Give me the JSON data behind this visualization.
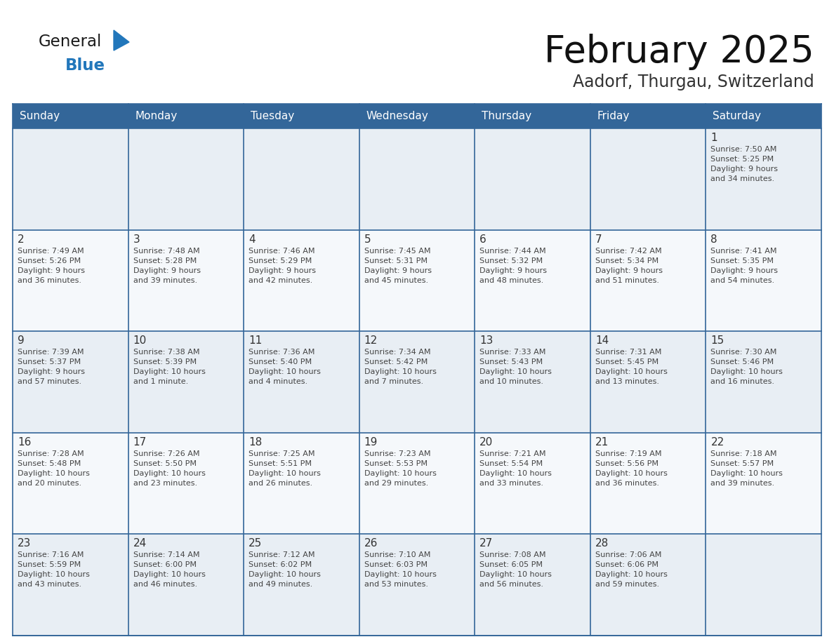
{
  "title": "February 2025",
  "subtitle": "Aadorf, Thurgau, Switzerland",
  "days_of_week": [
    "Sunday",
    "Monday",
    "Tuesday",
    "Wednesday",
    "Thursday",
    "Friday",
    "Saturday"
  ],
  "header_bg": "#336699",
  "header_text": "#ffffff",
  "cell_bg_odd": "#e8eef4",
  "cell_bg_even": "#f5f8fb",
  "border_color": "#336699",
  "text_color": "#444444",
  "day_num_color": "#333333",
  "title_color": "#111111",
  "subtitle_color": "#333333",
  "weeks": [
    [
      {
        "day": null,
        "info": ""
      },
      {
        "day": null,
        "info": ""
      },
      {
        "day": null,
        "info": ""
      },
      {
        "day": null,
        "info": ""
      },
      {
        "day": null,
        "info": ""
      },
      {
        "day": null,
        "info": ""
      },
      {
        "day": 1,
        "info": "Sunrise: 7:50 AM\nSunset: 5:25 PM\nDaylight: 9 hours\nand 34 minutes."
      }
    ],
    [
      {
        "day": 2,
        "info": "Sunrise: 7:49 AM\nSunset: 5:26 PM\nDaylight: 9 hours\nand 36 minutes."
      },
      {
        "day": 3,
        "info": "Sunrise: 7:48 AM\nSunset: 5:28 PM\nDaylight: 9 hours\nand 39 minutes."
      },
      {
        "day": 4,
        "info": "Sunrise: 7:46 AM\nSunset: 5:29 PM\nDaylight: 9 hours\nand 42 minutes."
      },
      {
        "day": 5,
        "info": "Sunrise: 7:45 AM\nSunset: 5:31 PM\nDaylight: 9 hours\nand 45 minutes."
      },
      {
        "day": 6,
        "info": "Sunrise: 7:44 AM\nSunset: 5:32 PM\nDaylight: 9 hours\nand 48 minutes."
      },
      {
        "day": 7,
        "info": "Sunrise: 7:42 AM\nSunset: 5:34 PM\nDaylight: 9 hours\nand 51 minutes."
      },
      {
        "day": 8,
        "info": "Sunrise: 7:41 AM\nSunset: 5:35 PM\nDaylight: 9 hours\nand 54 minutes."
      }
    ],
    [
      {
        "day": 9,
        "info": "Sunrise: 7:39 AM\nSunset: 5:37 PM\nDaylight: 9 hours\nand 57 minutes."
      },
      {
        "day": 10,
        "info": "Sunrise: 7:38 AM\nSunset: 5:39 PM\nDaylight: 10 hours\nand 1 minute."
      },
      {
        "day": 11,
        "info": "Sunrise: 7:36 AM\nSunset: 5:40 PM\nDaylight: 10 hours\nand 4 minutes."
      },
      {
        "day": 12,
        "info": "Sunrise: 7:34 AM\nSunset: 5:42 PM\nDaylight: 10 hours\nand 7 minutes."
      },
      {
        "day": 13,
        "info": "Sunrise: 7:33 AM\nSunset: 5:43 PM\nDaylight: 10 hours\nand 10 minutes."
      },
      {
        "day": 14,
        "info": "Sunrise: 7:31 AM\nSunset: 5:45 PM\nDaylight: 10 hours\nand 13 minutes."
      },
      {
        "day": 15,
        "info": "Sunrise: 7:30 AM\nSunset: 5:46 PM\nDaylight: 10 hours\nand 16 minutes."
      }
    ],
    [
      {
        "day": 16,
        "info": "Sunrise: 7:28 AM\nSunset: 5:48 PM\nDaylight: 10 hours\nand 20 minutes."
      },
      {
        "day": 17,
        "info": "Sunrise: 7:26 AM\nSunset: 5:50 PM\nDaylight: 10 hours\nand 23 minutes."
      },
      {
        "day": 18,
        "info": "Sunrise: 7:25 AM\nSunset: 5:51 PM\nDaylight: 10 hours\nand 26 minutes."
      },
      {
        "day": 19,
        "info": "Sunrise: 7:23 AM\nSunset: 5:53 PM\nDaylight: 10 hours\nand 29 minutes."
      },
      {
        "day": 20,
        "info": "Sunrise: 7:21 AM\nSunset: 5:54 PM\nDaylight: 10 hours\nand 33 minutes."
      },
      {
        "day": 21,
        "info": "Sunrise: 7:19 AM\nSunset: 5:56 PM\nDaylight: 10 hours\nand 36 minutes."
      },
      {
        "day": 22,
        "info": "Sunrise: 7:18 AM\nSunset: 5:57 PM\nDaylight: 10 hours\nand 39 minutes."
      }
    ],
    [
      {
        "day": 23,
        "info": "Sunrise: 7:16 AM\nSunset: 5:59 PM\nDaylight: 10 hours\nand 43 minutes."
      },
      {
        "day": 24,
        "info": "Sunrise: 7:14 AM\nSunset: 6:00 PM\nDaylight: 10 hours\nand 46 minutes."
      },
      {
        "day": 25,
        "info": "Sunrise: 7:12 AM\nSunset: 6:02 PM\nDaylight: 10 hours\nand 49 minutes."
      },
      {
        "day": 26,
        "info": "Sunrise: 7:10 AM\nSunset: 6:03 PM\nDaylight: 10 hours\nand 53 minutes."
      },
      {
        "day": 27,
        "info": "Sunrise: 7:08 AM\nSunset: 6:05 PM\nDaylight: 10 hours\nand 56 minutes."
      },
      {
        "day": 28,
        "info": "Sunrise: 7:06 AM\nSunset: 6:06 PM\nDaylight: 10 hours\nand 59 minutes."
      },
      {
        "day": null,
        "info": ""
      }
    ]
  ],
  "logo_general_color": "#1a1a1a",
  "logo_blue_color": "#2277bb",
  "logo_triangle_color": "#2277bb"
}
